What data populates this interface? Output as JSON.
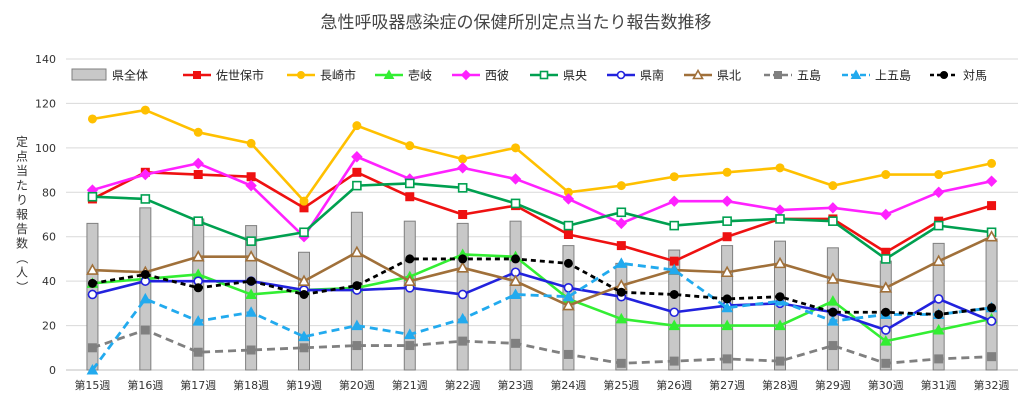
{
  "chart_data": {
    "type": "bar+line",
    "title": "急性呼吸器感染症の保健所別定点当たり報告数推移",
    "ylabel": "定点当たり報告数（人）",
    "xlabel": "",
    "ylim": [
      0,
      140
    ],
    "yticks": [
      "0",
      "20",
      "40",
      "60",
      "80",
      "100",
      "120",
      "140"
    ],
    "grid": "horizontal",
    "legend_position": "top",
    "categories": [
      "第15週",
      "第16週",
      "第17週",
      "第18週",
      "第19週",
      "第20週",
      "第21週",
      "第22週",
      "第23週",
      "第24週",
      "第25週",
      "第26週",
      "第27週",
      "第28週",
      "第29週",
      "第30週",
      "第31週",
      "第32週"
    ],
    "bar_series": {
      "name": "県全体",
      "color": "#c8c8c8",
      "border": "#7f7f7f",
      "values": [
        66,
        73,
        68,
        65,
        53,
        71,
        67,
        66,
        67,
        56,
        48,
        54,
        56,
        58,
        55,
        49,
        57,
        59
      ]
    },
    "series": [
      {
        "name": "佐世保市",
        "color": "#ee1111",
        "marker": "square",
        "dash": "solid",
        "values": [
          77,
          89,
          88,
          87,
          73,
          89,
          78,
          70,
          74,
          61,
          56,
          49,
          60,
          68,
          68,
          53,
          67,
          74
        ]
      },
      {
        "name": "長崎市",
        "color": "#ffc000",
        "marker": "circle",
        "dash": "solid",
        "values": [
          113,
          117,
          107,
          102,
          76,
          110,
          101,
          95,
          100,
          80,
          83,
          87,
          89,
          91,
          83,
          88,
          88,
          93
        ]
      },
      {
        "name": "壱岐",
        "color": "#33ee33",
        "marker": "triangle",
        "dash": "solid",
        "values": [
          39,
          41,
          43,
          34,
          36,
          37,
          42,
          52,
          51,
          32,
          23,
          20,
          20,
          20,
          31,
          13,
          18,
          23
        ]
      },
      {
        "name": "西彼",
        "color": "#ff22ff",
        "marker": "diamond",
        "dash": "solid",
        "values": [
          81,
          88,
          93,
          83,
          60,
          96,
          86,
          91,
          86,
          77,
          66,
          76,
          76,
          72,
          73,
          70,
          80,
          85
        ]
      },
      {
        "name": "県央",
        "color": "#00a050",
        "marker": "square-open",
        "dash": "solid",
        "values": [
          78,
          77,
          67,
          58,
          62,
          83,
          84,
          82,
          75,
          65,
          71,
          65,
          67,
          68,
          67,
          50,
          65,
          62
        ]
      },
      {
        "name": "県南",
        "color": "#2222dd",
        "marker": "circle-open",
        "dash": "solid",
        "values": [
          34,
          40,
          40,
          40,
          36,
          36,
          37,
          34,
          44,
          37,
          33,
          26,
          29,
          30,
          26,
          18,
          32,
          22
        ]
      },
      {
        "name": "県北",
        "color": "#a0703a",
        "marker": "triangle-open",
        "dash": "solid",
        "values": [
          45,
          44,
          51,
          51,
          40,
          53,
          40,
          46,
          40,
          29,
          38,
          45,
          44,
          48,
          41,
          37,
          49,
          60
        ]
      },
      {
        "name": "五島",
        "color": "#808080",
        "marker": "square",
        "dash": "dash",
        "values": [
          10,
          18,
          8,
          9,
          10,
          11,
          11,
          13,
          12,
          7,
          3,
          4,
          5,
          4,
          11,
          3,
          5,
          6
        ]
      },
      {
        "name": "上五島",
        "color": "#22aaee",
        "marker": "triangle",
        "dash": "dash",
        "values": [
          0,
          32,
          22,
          26,
          15,
          20,
          16,
          23,
          34,
          33,
          48,
          45,
          28,
          31,
          22,
          25,
          25,
          28
        ]
      },
      {
        "name": "対馬",
        "color": "#000000",
        "marker": "circle",
        "dash": "dot",
        "values": [
          39,
          43,
          37,
          40,
          34,
          38,
          50,
          50,
          50,
          48,
          35,
          34,
          32,
          33,
          26,
          26,
          25,
          28
        ]
      }
    ]
  }
}
